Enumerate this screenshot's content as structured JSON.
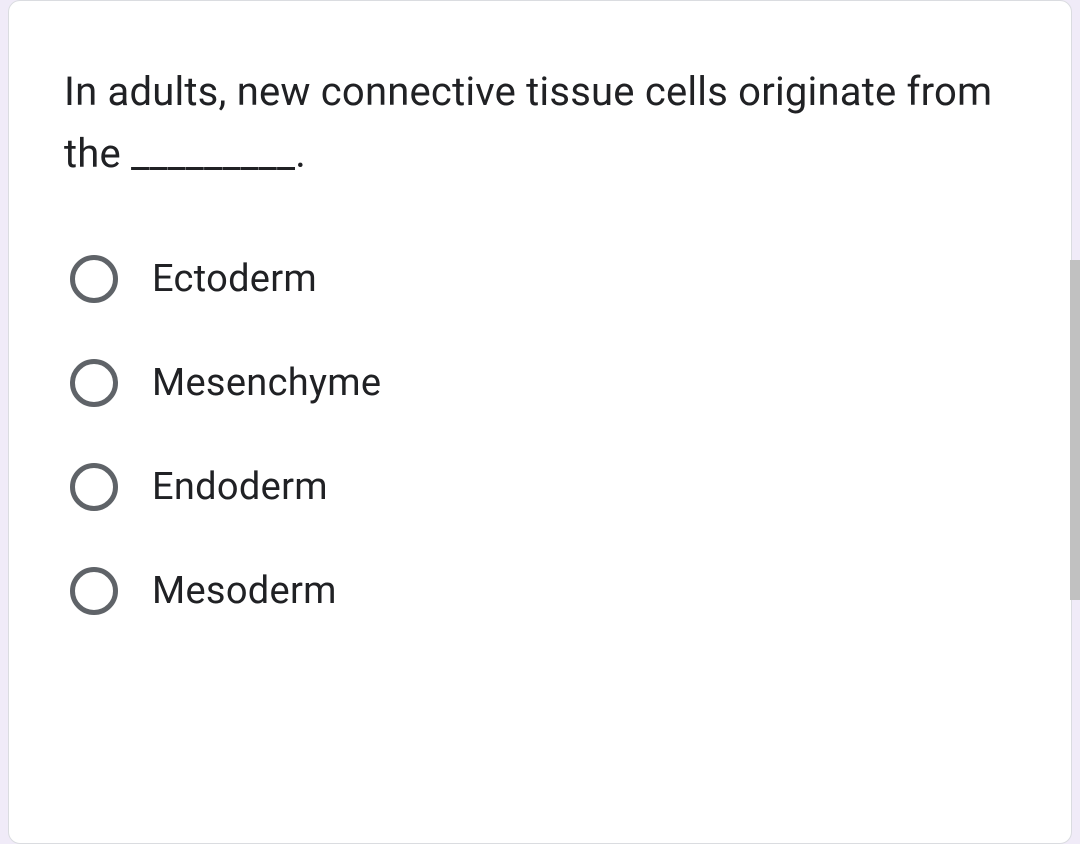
{
  "question": {
    "text": "In adults, new connective tissue cells originate from the _________.",
    "options": [
      {
        "label": "Ectoderm"
      },
      {
        "label": "Mesenchyme"
      },
      {
        "label": "Endoderm"
      },
      {
        "label": "Mesoderm"
      }
    ]
  },
  "styling": {
    "card_background": "#ffffff",
    "page_background": "#f0ebf8",
    "border_color": "#dadce0",
    "text_color": "#202124",
    "radio_border_color": "#5f6368",
    "scrollbar_color": "#c1c1c1",
    "question_fontsize": 40,
    "option_fontsize": 38,
    "radio_size": 48,
    "radio_border_width": 5,
    "border_radius": 12
  }
}
